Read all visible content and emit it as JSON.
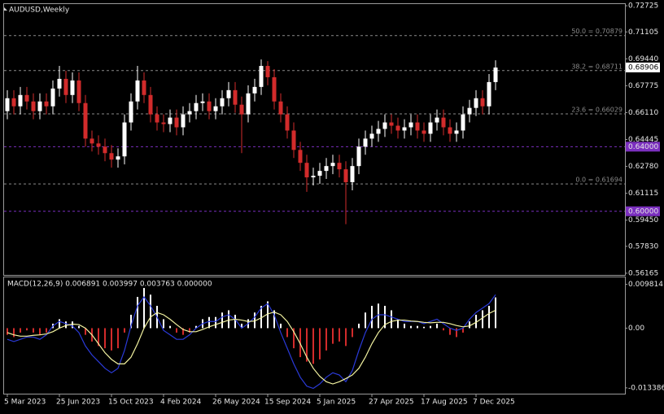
{
  "chart_data": [
    {
      "type": "candlestick",
      "title": "AUDUSD,Weekly",
      "bull_color": "#ffffff",
      "bear_color": "#d22b2b",
      "open": [
        0.662,
        0.67,
        0.665,
        0.672,
        0.668,
        0.662,
        0.668,
        0.665,
        0.676,
        0.682,
        0.672,
        0.681,
        0.667,
        0.645,
        0.642,
        0.64,
        0.636,
        0.632,
        0.634,
        0.655,
        0.668,
        0.681,
        0.672,
        0.66,
        0.655,
        0.654,
        0.658,
        0.652,
        0.66,
        0.662,
        0.667,
        0.668,
        0.662,
        0.665,
        0.67,
        0.675,
        0.666,
        0.66,
        0.673,
        0.677,
        0.69,
        0.683,
        0.668,
        0.66,
        0.65,
        0.638,
        0.63,
        0.621,
        0.622,
        0.625,
        0.628,
        0.63,
        0.626,
        0.618,
        0.628,
        0.64,
        0.645,
        0.648,
        0.651,
        0.655,
        0.653,
        0.65,
        0.652,
        0.655,
        0.65,
        0.648,
        0.655,
        0.658,
        0.652,
        0.648,
        0.65,
        0.66,
        0.664,
        0.67,
        0.665,
        0.68
      ],
      "high": [
        0.675,
        0.675,
        0.677,
        0.677,
        0.673,
        0.673,
        0.673,
        0.681,
        0.69,
        0.687,
        0.686,
        0.686,
        0.672,
        0.65,
        0.647,
        0.645,
        0.641,
        0.639,
        0.66,
        0.673,
        0.69,
        0.686,
        0.677,
        0.665,
        0.66,
        0.663,
        0.663,
        0.665,
        0.667,
        0.672,
        0.673,
        0.673,
        0.67,
        0.675,
        0.68,
        0.68,
        0.671,
        0.678,
        0.682,
        0.694,
        0.693,
        0.688,
        0.673,
        0.665,
        0.655,
        0.643,
        0.635,
        0.627,
        0.63,
        0.633,
        0.635,
        0.635,
        0.631,
        0.633,
        0.645,
        0.65,
        0.653,
        0.656,
        0.66,
        0.66,
        0.658,
        0.657,
        0.66,
        0.66,
        0.655,
        0.66,
        0.663,
        0.663,
        0.657,
        0.655,
        0.665,
        0.669,
        0.675,
        0.675,
        0.685,
        0.6935
      ],
      "low": [
        0.657,
        0.66,
        0.66,
        0.663,
        0.657,
        0.657,
        0.66,
        0.66,
        0.671,
        0.667,
        0.667,
        0.662,
        0.64,
        0.637,
        0.635,
        0.631,
        0.627,
        0.627,
        0.629,
        0.65,
        0.663,
        0.667,
        0.655,
        0.65,
        0.649,
        0.649,
        0.647,
        0.647,
        0.655,
        0.657,
        0.662,
        0.657,
        0.657,
        0.66,
        0.665,
        0.661,
        0.636,
        0.655,
        0.668,
        0.672,
        0.678,
        0.663,
        0.655,
        0.645,
        0.633,
        0.625,
        0.612,
        0.616,
        0.617,
        0.62,
        0.623,
        0.621,
        0.592,
        0.613,
        0.623,
        0.635,
        0.64,
        0.643,
        0.646,
        0.648,
        0.645,
        0.645,
        0.647,
        0.645,
        0.643,
        0.643,
        0.65,
        0.647,
        0.643,
        0.643,
        0.645,
        0.655,
        0.659,
        0.66,
        0.66,
        0.675
      ],
      "close": [
        0.67,
        0.665,
        0.672,
        0.668,
        0.662,
        0.668,
        0.665,
        0.676,
        0.682,
        0.672,
        0.681,
        0.667,
        0.645,
        0.642,
        0.64,
        0.636,
        0.632,
        0.634,
        0.655,
        0.668,
        0.681,
        0.672,
        0.66,
        0.655,
        0.654,
        0.658,
        0.652,
        0.66,
        0.662,
        0.667,
        0.668,
        0.662,
        0.665,
        0.67,
        0.675,
        0.666,
        0.66,
        0.673,
        0.677,
        0.69,
        0.683,
        0.668,
        0.66,
        0.65,
        0.638,
        0.63,
        0.621,
        0.622,
        0.625,
        0.628,
        0.63,
        0.626,
        0.618,
        0.628,
        0.64,
        0.645,
        0.648,
        0.651,
        0.655,
        0.653,
        0.65,
        0.652,
        0.655,
        0.65,
        0.648,
        0.655,
        0.658,
        0.652,
        0.648,
        0.65,
        0.66,
        0.664,
        0.67,
        0.665,
        0.68,
        0.689
      ],
      "ylim": [
        0.5606,
        0.7283
      ],
      "yticks": [
        0.72725,
        0.71105,
        {
          "value": 0.6944,
          "label": "0.69440"
        },
        0.67775,
        {
          "value": 0.6611,
          "label": "0.66110"
        },
        0.64445,
        {
          "value": 0.6278,
          "label": "0.62780"
        },
        0.61115,
        {
          "value": 0.5945,
          "label": "0.59450"
        },
        {
          "value": 0.5783,
          "label": "0.57830"
        },
        0.56165
      ],
      "xticks": [
        {
          "value": 0,
          "label": "5 Mar 2023"
        },
        {
          "value": 8,
          "label": "25 Jun 2023"
        },
        {
          "value": 16,
          "label": "15 Oct 2023"
        },
        {
          "value": 24,
          "label": "4 Feb 2024"
        },
        {
          "value": 32,
          "label": "26 May 2024"
        },
        {
          "value": 40,
          "label": "15 Sep 2024"
        },
        {
          "value": 48,
          "label": "5 Jan 2025"
        },
        {
          "value": 56,
          "label": "27 Apr 2025"
        },
        {
          "value": 64,
          "label": "17 Aug 2025"
        },
        {
          "value": 72,
          "label": "7 Dec 2025"
        }
      ],
      "fib_levels": [
        {
          "value": 0.70879,
          "label": "50.0 = 0.70879"
        },
        {
          "value": 0.68711,
          "label": "38.2 = 0.68711"
        },
        {
          "value": 0.66029,
          "label": "23.6 = 0.66029"
        },
        {
          "value": 0.61694,
          "label": "0.0 = 0.61694"
        }
      ],
      "fib_color": "#8a8a8a",
      "price_levels": [
        {
          "value": 0.64,
          "label": "0.64000"
        },
        {
          "value": 0.6,
          "label": "0.60000"
        }
      ],
      "price_level_color": "#7b2fbf",
      "current_price": 0.68906
    },
    {
      "type": "macd",
      "title": "MACD(12,26,9) 0.006891 0.003997 0.003763 0.000000",
      "histogram": {
        "color_up": "#ffffff",
        "color_down": "#d22b2b",
        "values": [
          -0.0015,
          -0.002,
          -0.001,
          -0.0005,
          -0.001,
          -0.0015,
          -0.001,
          0.001,
          0.002,
          0.0015,
          0.0015,
          0.0005,
          -0.0015,
          -0.003,
          -0.004,
          -0.0045,
          -0.005,
          -0.0045,
          -0.001,
          0.003,
          0.007,
          0.009,
          0.0075,
          0.005,
          0.002,
          0.0005,
          -0.001,
          -0.0015,
          -0.001,
          0.0005,
          0.002,
          0.0025,
          0.0025,
          0.0035,
          0.004,
          0.003,
          0.001,
          0.002,
          0.0035,
          0.005,
          0.006,
          0.004,
          0.001,
          -0.002,
          -0.0045,
          -0.0065,
          -0.0075,
          -0.008,
          -0.007,
          -0.005,
          -0.0035,
          -0.003,
          -0.004,
          -0.002,
          0.001,
          0.0035,
          0.005,
          0.0055,
          0.005,
          0.004,
          0.002,
          0.001,
          0.0005,
          0.0005,
          0.0003,
          0.0005,
          0.001,
          -0.0005,
          -0.0015,
          -0.002,
          -0.001,
          0.0015,
          0.003,
          0.004,
          0.005,
          0.006891
        ]
      },
      "main_line": {
        "color": "#2a3ad8",
        "values": [
          -0.0025,
          -0.003,
          -0.0025,
          -0.002,
          -0.002,
          -0.0025,
          -0.0015,
          0.0005,
          0.0015,
          0.001,
          0.0005,
          -0.001,
          -0.004,
          -0.006,
          -0.0075,
          -0.009,
          -0.01,
          -0.009,
          -0.005,
          0.0005,
          0.005,
          0.007,
          0.005,
          0.0025,
          -0.0005,
          -0.0015,
          -0.0025,
          -0.0025,
          -0.0015,
          0,
          0.001,
          0.0015,
          0.0015,
          0.0025,
          0.003,
          0.002,
          0,
          0.001,
          0.0025,
          0.0045,
          0.0055,
          0.003,
          -0.001,
          -0.0045,
          -0.008,
          -0.011,
          -0.013,
          -0.0135,
          -0.0125,
          -0.011,
          -0.01,
          -0.0105,
          -0.012,
          -0.0095,
          -0.005,
          -0.001,
          0.002,
          0.003,
          0.003,
          0.0025,
          0.002,
          0.0015,
          0.0015,
          0.0015,
          0.001,
          0.0015,
          0.002,
          0.001,
          0,
          -0.0005,
          0,
          0.002,
          0.0035,
          0.0045,
          0.0055,
          0.0075
        ]
      },
      "signal_line": {
        "color": "#f2f2a0",
        "values": [
          -0.001,
          -0.0015,
          -0.0018,
          -0.0018,
          -0.0016,
          -0.0015,
          -0.0013,
          -0.0008,
          0,
          0.0006,
          0.0009,
          0.0008,
          0,
          -0.0015,
          -0.0035,
          -0.0055,
          -0.007,
          -0.008,
          -0.008,
          -0.0065,
          -0.0035,
          0,
          0.0025,
          0.0035,
          0.003,
          0.002,
          0.0008,
          -0.0003,
          -0.0008,
          -0.0008,
          -0.0003,
          0.0003,
          0.0008,
          0.0013,
          0.0018,
          0.002,
          0.0018,
          0.0015,
          0.0016,
          0.0023,
          0.0032,
          0.0036,
          0.003,
          0.0015,
          -0.0008,
          -0.0035,
          -0.0065,
          -0.009,
          -0.0108,
          -0.012,
          -0.0125,
          -0.012,
          -0.0113,
          -0.0105,
          -0.009,
          -0.0065,
          -0.0035,
          -0.001,
          0.0008,
          0.0015,
          0.0018,
          0.0018,
          0.0016,
          0.0015,
          0.0013,
          0.0012,
          0.0013,
          0.0013,
          0.001,
          0.0006,
          0.0003,
          0.0005,
          0.0013,
          0.0023,
          0.0033,
          0.004
        ]
      },
      "ylim": [
        -0.0145,
        0.0112
      ],
      "yticks": [
        0.009814,
        {
          "value": 0,
          "label": "0.00"
        },
        -0.013386
      ]
    }
  ]
}
